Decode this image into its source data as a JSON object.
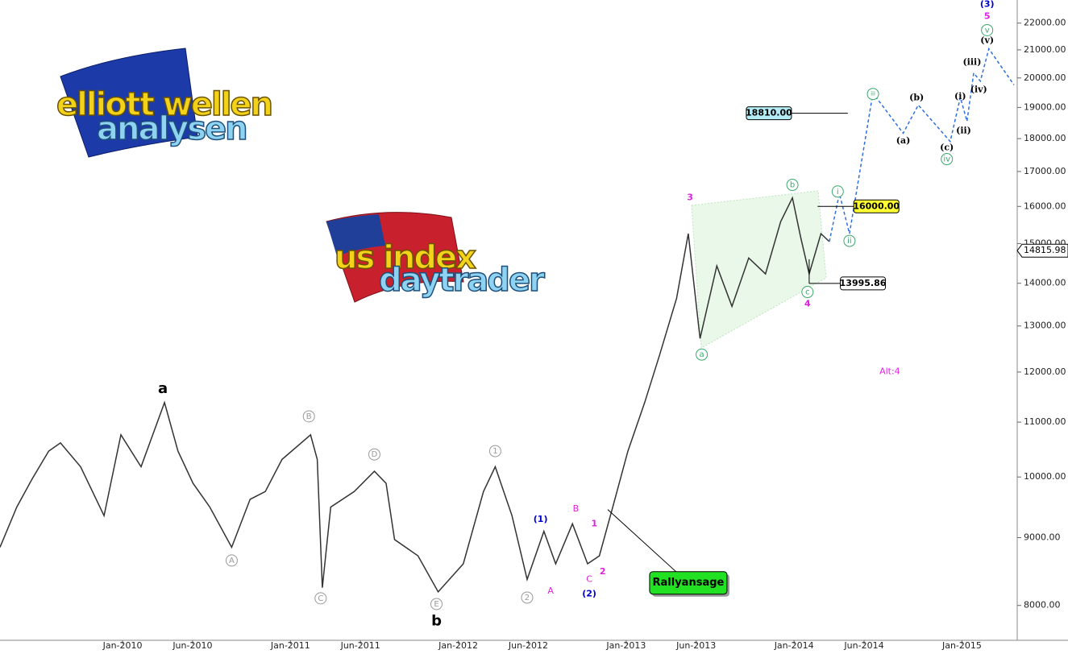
{
  "chart_data": {
    "type": "line",
    "log_scale": true,
    "xlim": [
      2009.27,
      2015.31
    ],
    "ylim": [
      7530,
      22900
    ],
    "xticks": [
      {
        "value": 2010.0,
        "label": "Jan-2010"
      },
      {
        "value": 2010.417,
        "label": "Jun-2010"
      },
      {
        "value": 2011.0,
        "label": "Jan-2011"
      },
      {
        "value": 2011.417,
        "label": "Jun-2011"
      },
      {
        "value": 2012.0,
        "label": "Jan-2012"
      },
      {
        "value": 2012.417,
        "label": "Jun-2012"
      },
      {
        "value": 2013.0,
        "label": "Jan-2013"
      },
      {
        "value": 2013.417,
        "label": "Jun-2013"
      },
      {
        "value": 2014.0,
        "label": "Jan-2014"
      },
      {
        "value": 2014.417,
        "label": "Jun-2014"
      },
      {
        "value": 2015.0,
        "label": "Jan-2015"
      }
    ],
    "yticks": [
      {
        "value": 8000,
        "label": "8000.00"
      },
      {
        "value": 9000,
        "label": "9000.00"
      },
      {
        "value": 10000,
        "label": "10000.00"
      },
      {
        "value": 11000,
        "label": "11000.00"
      },
      {
        "value": 12000,
        "label": "12000.00"
      },
      {
        "value": 13000,
        "label": "13000.00"
      },
      {
        "value": 14000,
        "label": "14000.00"
      },
      {
        "value": 15000,
        "label": "15000.00"
      },
      {
        "value": 16000,
        "label": "16000.00"
      },
      {
        "value": 17000,
        "label": "17000.00"
      },
      {
        "value": 18000,
        "label": "18000.00"
      },
      {
        "value": 19000,
        "label": "19000.00"
      },
      {
        "value": 20000,
        "label": "20000.00"
      },
      {
        "value": 21000,
        "label": "21000.00"
      },
      {
        "value": 22000,
        "label": "22000.00"
      }
    ],
    "series": [
      {
        "color": "#333333",
        "dashed": false,
        "x": [
          2009.27,
          2009.37,
          2009.46,
          2009.56,
          2009.63,
          2009.75,
          2009.89,
          2009.99,
          2010.11,
          2010.25,
          2010.33,
          2010.42,
          2010.52,
          2010.65,
          2010.76,
          2010.85,
          2010.95,
          2011.12,
          2011.16,
          2011.19,
          2011.24,
          2011.38,
          2011.5,
          2011.57,
          2011.62,
          2011.76,
          2011.88,
          2012.03,
          2012.15,
          2012.22,
          2012.32,
          2012.41,
          2012.51,
          2012.58,
          2012.68,
          2012.77,
          2012.84,
          2012.92,
          2013.01,
          2013.11,
          2013.2,
          2013.3,
          2013.37,
          2013.44,
          2013.54,
          2013.63,
          2013.73,
          2013.83,
          2013.92,
          2013.99,
          2014.04,
          2014.09,
          2014.16,
          2014.21
        ],
        "values": [
          8850,
          9490,
          9960,
          10460,
          10610,
          10180,
          9350,
          10760,
          10180,
          11380,
          10460,
          9890,
          9490,
          8850,
          9620,
          9750,
          10310,
          10760,
          10310,
          8250,
          9490,
          9750,
          10100,
          9890,
          8970,
          8720,
          8190,
          8600,
          9750,
          10180,
          9350,
          8370,
          9100,
          8600,
          9220,
          8600,
          8720,
          9490,
          10460,
          11380,
          12370,
          13640,
          15260,
          12720,
          14430,
          13450,
          14630,
          14230,
          15580,
          16240,
          15150,
          14230,
          15260,
          15050
        ]
      },
      {
        "color": "#2f6fe0",
        "dashed": true,
        "x": [
          2014.21,
          2014.27,
          2014.33,
          2014.47,
          2014.65,
          2014.74,
          2014.93,
          2014.99,
          2015.03,
          2015.07,
          2015.11,
          2015.16,
          2015.31
        ],
        "values": [
          15050,
          16360,
          15260,
          19480,
          18170,
          19080,
          17910,
          19340,
          18550,
          20170,
          19890,
          21040,
          19760
        ]
      }
    ],
    "last_price": 14815.98,
    "levels": [
      {
        "value": 18810,
        "label": "18810.00",
        "color": "#b3ecf5",
        "x": 2013.85,
        "x2": 2014.32
      },
      {
        "value": 16000,
        "label": "16000.00",
        "color": "#ffff33",
        "x": 2014.49,
        "x2": 2014.14
      },
      {
        "value": 13995.86,
        "label": "13995.86",
        "color": "#ffffff",
        "x": 2014.41,
        "x2": 2014.09
      }
    ],
    "callout": {
      "text": "Rallyansage",
      "x": 2013.37,
      "y": 8320,
      "target_x": 2012.89,
      "target_y": 9450,
      "color": "#22e022"
    },
    "annotations": [
      {
        "text": "a",
        "x": 2010.24,
        "y": 11650,
        "color": "#000000",
        "bold": true,
        "circled": false
      },
      {
        "text": "b",
        "x": 2011.87,
        "y": 7780,
        "color": "#000000",
        "bold": true,
        "circled": false
      },
      {
        "text": "A",
        "x": 2010.65,
        "y": 8650,
        "color": "#999999",
        "bold": false,
        "circled": true
      },
      {
        "text": "B",
        "x": 2011.11,
        "y": 11110,
        "color": "#999999",
        "bold": false,
        "circled": true
      },
      {
        "text": "C",
        "x": 2011.18,
        "y": 8100,
        "color": "#999999",
        "bold": false,
        "circled": true
      },
      {
        "text": "D",
        "x": 2011.5,
        "y": 10400,
        "color": "#999999",
        "bold": false,
        "circled": true
      },
      {
        "text": "E",
        "x": 2011.87,
        "y": 8020,
        "color": "#999999",
        "bold": false,
        "circled": true
      },
      {
        "text": "1",
        "x": 2012.22,
        "y": 10460,
        "color": "#999999",
        "bold": false,
        "circled": true
      },
      {
        "text": "2",
        "x": 2012.41,
        "y": 8110,
        "color": "#999999",
        "bold": false,
        "circled": true
      },
      {
        "text": "(1)",
        "x": 2012.49,
        "y": 9290,
        "color": "#0000cc",
        "bold": true,
        "circled": false
      },
      {
        "text": "A",
        "x": 2012.55,
        "y": 8200,
        "color": "#e020e0",
        "bold": false,
        "circled": false
      },
      {
        "text": "B",
        "x": 2012.7,
        "y": 9460,
        "color": "#e020e0",
        "bold": false,
        "circled": false
      },
      {
        "text": "C",
        "x": 2012.78,
        "y": 8370,
        "color": "#e020e0",
        "bold": false,
        "circled": false
      },
      {
        "text": "(2)",
        "x": 2012.78,
        "y": 8160,
        "color": "#0000cc",
        "bold": true,
        "circled": false
      },
      {
        "text": "1",
        "x": 2012.81,
        "y": 9220,
        "color": "#e020e0",
        "bold": true,
        "circled": false
      },
      {
        "text": "2",
        "x": 2012.86,
        "y": 8480,
        "color": "#e020e0",
        "bold": true,
        "circled": false
      },
      {
        "text": "3",
        "x": 2013.38,
        "y": 16240,
        "color": "#e020e0",
        "bold": true,
        "circled": false
      },
      {
        "text": "a",
        "x": 2013.45,
        "y": 12370,
        "color": "#3aa86b",
        "bold": false,
        "circled": true
      },
      {
        "text": "b",
        "x": 2013.99,
        "y": 16610,
        "color": "#3aa86b",
        "bold": false,
        "circled": true
      },
      {
        "text": "c",
        "x": 2014.08,
        "y": 13790,
        "color": "#3aa86b",
        "bold": false,
        "circled": true
      },
      {
        "text": "4",
        "x": 2014.08,
        "y": 13500,
        "color": "#e020e0",
        "bold": true,
        "circled": false
      },
      {
        "text": "i",
        "x": 2014.26,
        "y": 16420,
        "color": "#3aa86b",
        "bold": false,
        "circled": true
      },
      {
        "text": "ii",
        "x": 2014.33,
        "y": 15070,
        "color": "#3aa86b",
        "bold": false,
        "circled": true
      },
      {
        "text": "iii",
        "x": 2014.47,
        "y": 19450,
        "color": "#3aa86b",
        "bold": false,
        "circled": true
      },
      {
        "text": "(a)",
        "x": 2014.65,
        "y": 17930,
        "color": "#000000",
        "bold": true,
        "circled": false
      },
      {
        "text": "(b)",
        "x": 2014.73,
        "y": 19320,
        "color": "#000000",
        "bold": true,
        "circled": false
      },
      {
        "text": "(c)",
        "x": 2014.91,
        "y": 17710,
        "color": "#000000",
        "bold": true,
        "circled": false
      },
      {
        "text": "iv",
        "x": 2014.91,
        "y": 17370,
        "color": "#3aa86b",
        "bold": false,
        "circled": true
      },
      {
        "text": "(i)",
        "x": 2014.99,
        "y": 19360,
        "color": "#000000",
        "bold": true,
        "circled": false
      },
      {
        "text": "(ii)",
        "x": 2015.01,
        "y": 18240,
        "color": "#000000",
        "bold": true,
        "circled": false
      },
      {
        "text": "(iii)",
        "x": 2015.06,
        "y": 20550,
        "color": "#000000",
        "bold": true,
        "circled": false
      },
      {
        "text": "(iv)",
        "x": 2015.1,
        "y": 19590,
        "color": "#000000",
        "bold": true,
        "circled": false
      },
      {
        "text": "(v)",
        "x": 2015.15,
        "y": 21340,
        "color": "#000000",
        "bold": true,
        "circled": false
      },
      {
        "text": "v",
        "x": 2015.15,
        "y": 21730,
        "color": "#3aa86b",
        "bold": false,
        "circled": true
      },
      {
        "text": "5",
        "x": 2015.15,
        "y": 22250,
        "color": "#e020e0",
        "bold": true,
        "circled": false
      },
      {
        "text": "(3)",
        "x": 2015.15,
        "y": 22720,
        "color": "#0000cc",
        "bold": true,
        "circled": false
      },
      {
        "text": "Alt:4",
        "x": 2014.57,
        "y": 12010,
        "color": "#e020e0",
        "bold": false,
        "circled": false
      }
    ]
  },
  "logos": [
    {
      "line1": "elliott wellen",
      "line2": "analysen"
    },
    {
      "line1": "us index",
      "line2": "daytrader"
    }
  ]
}
